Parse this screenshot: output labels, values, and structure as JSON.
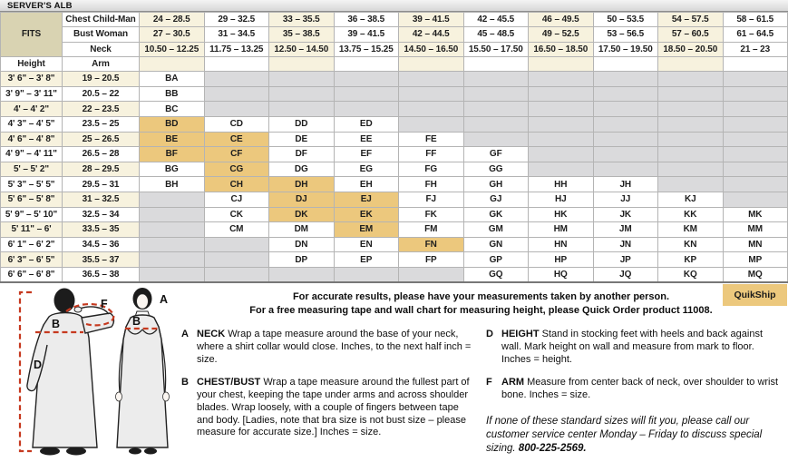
{
  "title": "SERVER'S ALB",
  "fits_label": "FITS",
  "quikship_label": "QuikShip",
  "table": {
    "col_headers": {
      "height": "Height",
      "arm": "Arm"
    },
    "fit_rows": [
      {
        "label": "Chest Child-Man",
        "values": [
          "24 – 28.5",
          "29 – 32.5",
          "33 – 35.5",
          "36 – 38.5",
          "39 – 41.5",
          "42 – 45.5",
          "46 – 49.5",
          "50 – 53.5",
          "54 – 57.5",
          "58 – 61.5"
        ]
      },
      {
        "label": "Bust Woman",
        "values": [
          "27 – 30.5",
          "31 – 34.5",
          "35 – 38.5",
          "39 – 41.5",
          "42 – 44.5",
          "45 – 48.5",
          "49 – 52.5",
          "53 – 56.5",
          "57 – 60.5",
          "61 – 64.5"
        ]
      },
      {
        "label": "Neck",
        "values": [
          "10.50 – 12.25",
          "11.75 – 13.25",
          "12.50 – 14.50",
          "13.75 – 15.25",
          "14.50 – 16.50",
          "15.50 – 17.50",
          "16.50 – 18.50",
          "17.50 – 19.50",
          "18.50 – 20.50",
          "21 – 23"
        ]
      }
    ],
    "rows": [
      {
        "height": "3' 6\" – 3' 8\"",
        "arm": "19 – 20.5",
        "sizes": [
          "BA",
          "",
          "",
          "",
          "",
          "",
          "",
          "",
          "",
          ""
        ]
      },
      {
        "height": "3' 9\" – 3' 11\"",
        "arm": "20.5 – 22",
        "sizes": [
          "BB",
          "",
          "",
          "",
          "",
          "",
          "",
          "",
          "",
          ""
        ]
      },
      {
        "height": "4' – 4' 2\"",
        "arm": "22 – 23.5",
        "sizes": [
          "BC",
          "",
          "",
          "",
          "",
          "",
          "",
          "",
          "",
          ""
        ]
      },
      {
        "height": "4' 3\" – 4' 5\"",
        "arm": "23.5 – 25",
        "sizes": [
          "BD",
          "CD",
          "DD",
          "ED",
          "",
          "",
          "",
          "",
          "",
          ""
        ]
      },
      {
        "height": "4' 6\" – 4' 8\"",
        "arm": "25 – 26.5",
        "sizes": [
          "BE",
          "CE",
          "DE",
          "EE",
          "FE",
          "",
          "",
          "",
          "",
          ""
        ]
      },
      {
        "height": "4' 9\" – 4' 11\"",
        "arm": "26.5 – 28",
        "sizes": [
          "BF",
          "CF",
          "DF",
          "EF",
          "FF",
          "GF",
          "",
          "",
          "",
          ""
        ]
      },
      {
        "height": "5' – 5' 2\"",
        "arm": "28 – 29.5",
        "sizes": [
          "BG",
          "CG",
          "DG",
          "EG",
          "FG",
          "GG",
          "",
          "",
          "",
          ""
        ]
      },
      {
        "height": "5' 3\" – 5' 5\"",
        "arm": "29.5 – 31",
        "sizes": [
          "BH",
          "CH",
          "DH",
          "EH",
          "FH",
          "GH",
          "HH",
          "JH",
          "",
          ""
        ]
      },
      {
        "height": "5' 6\" – 5' 8\"",
        "arm": "31 – 32.5",
        "sizes": [
          "",
          "CJ",
          "DJ",
          "EJ",
          "FJ",
          "GJ",
          "HJ",
          "JJ",
          "KJ",
          ""
        ]
      },
      {
        "height": "5' 9\" – 5' 10\"",
        "arm": "32.5 – 34",
        "sizes": [
          "",
          "CK",
          "DK",
          "EK",
          "FK",
          "GK",
          "HK",
          "JK",
          "KK",
          "MK"
        ]
      },
      {
        "height": "5' 11\" – 6'",
        "arm": "33.5 – 35",
        "sizes": [
          "",
          "CM",
          "DM",
          "EM",
          "FM",
          "GM",
          "HM",
          "JM",
          "KM",
          "MM"
        ]
      },
      {
        "height": "6' 1\" – 6' 2\"",
        "arm": "34.5 – 36",
        "sizes": [
          "",
          "",
          "DN",
          "EN",
          "FN",
          "GN",
          "HN",
          "JN",
          "KN",
          "MN"
        ]
      },
      {
        "height": "6' 3\" – 6' 5\"",
        "arm": "35.5 – 37",
        "sizes": [
          "",
          "",
          "DP",
          "EP",
          "FP",
          "GP",
          "HP",
          "JP",
          "KP",
          "MP"
        ]
      },
      {
        "height": "6' 6\" – 6' 8\"",
        "arm": "36.5 – 38",
        "sizes": [
          "",
          "",
          "",
          "",
          "",
          "GQ",
          "HQ",
          "JQ",
          "KQ",
          "MQ"
        ]
      }
    ],
    "quikship_sizes": [
      "BD",
      "BE",
      "CE",
      "BF",
      "CF",
      "CG",
      "CH",
      "DH",
      "DJ",
      "EJ",
      "DK",
      "EK",
      "EM",
      "FN"
    ]
  },
  "intro": {
    "line1": "For accurate results, please have your measurements taken by another person.",
    "line2": "For a free measuring tape and wall chart for measuring height, please Quick Order product 11008."
  },
  "measure_notes": [
    {
      "letter": "A",
      "term": "NECK",
      "column": "left",
      "text": "Wrap a tape measure around the base of your neck, where a shirt collar would close. Inches, to the next half inch = size."
    },
    {
      "letter": "B",
      "term": "CHEST/BUST",
      "column": "left",
      "text": "Wrap a tape measure around the fullest part of your chest, keeping the tape under arms and across shoulder blades. Wrap loosely, with a couple of fingers between tape and body. [Ladies, note that bra size is not bust size – please measure for accurate size.] Inches = size."
    },
    {
      "letter": "D",
      "term": "HEIGHT",
      "column": "right",
      "text": "Stand in stocking feet with heels and back against wall. Mark height on wall and measure from mark to floor. Inches = height."
    },
    {
      "letter": "F",
      "term": "ARM",
      "column": "right",
      "text": "Measure from center back of neck, over shoulder to wrist bone. Inches = size."
    }
  ],
  "special_note": {
    "text": "If none of these standard sizes will fit you, please call our customer service center Monday – Friday to discuss special sizing.",
    "phone": "800-225-2569."
  },
  "figure": {
    "labels": {
      "neck": "A",
      "bust": "B",
      "back": "B",
      "height": "D",
      "arm": "F"
    }
  },
  "colors": {
    "beige_stripe": "#f7f2de",
    "fits_tan": "#d9d3b2",
    "quikship_orange": "#ecc87d",
    "unavailable_gray": "#dadadc",
    "measure_line_red": "#c6391f"
  }
}
